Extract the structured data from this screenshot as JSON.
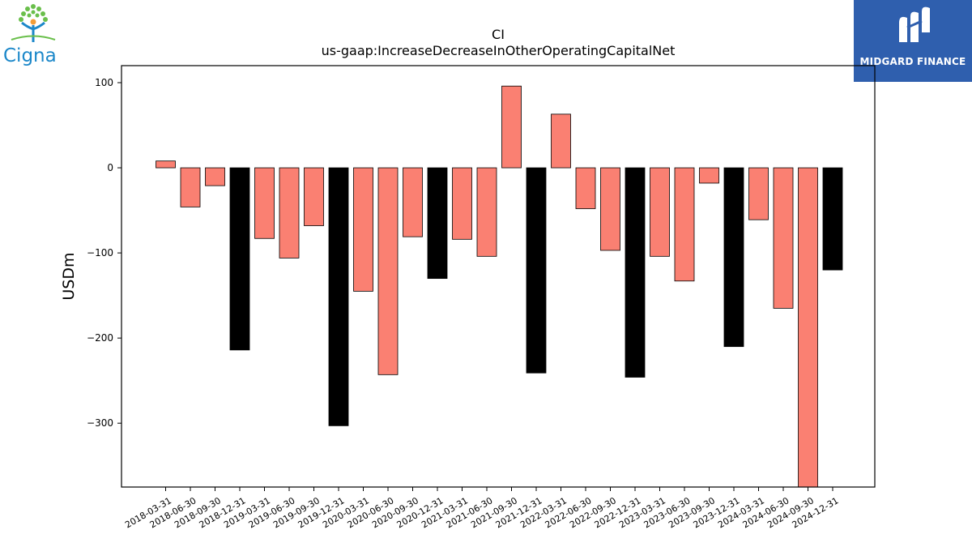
{
  "logos": {
    "left_name": "Cigna",
    "right_name": "MIDGARD FINANCE",
    "colors": {
      "cigna_blue": "#1b87c9",
      "cigna_green": "#6abf4b",
      "cigna_orange": "#f29d38",
      "midgard_blue": "#2f5fae"
    }
  },
  "chart_data": {
    "type": "bar",
    "title": "CI",
    "subtitle": "us-gaap:IncreaseDecreaseInOtherOperatingCapitalNet",
    "xlabel": "",
    "ylabel": "USDm",
    "ylim": [
      -375,
      120
    ],
    "yticks": [
      100,
      0,
      -100,
      -200,
      -300
    ],
    "ytick_labels": [
      "100",
      "0",
      "−100",
      "−200",
      "−300"
    ],
    "grid": false,
    "legend": "none",
    "colors": {
      "quarter": "#fa8072",
      "year_end": "#000000"
    },
    "categories": [
      "2018-03-31",
      "2018-06-30",
      "2018-09-30",
      "2018-12-31",
      "2019-03-31",
      "2019-06-30",
      "2019-09-30",
      "2019-12-31",
      "2020-03-31",
      "2020-06-30",
      "2020-09-30",
      "2020-12-31",
      "2021-03-31",
      "2021-06-30",
      "2021-09-30",
      "2021-12-31",
      "2022-03-31",
      "2022-06-30",
      "2022-09-30",
      "2022-12-31",
      "2023-03-31",
      "2023-06-30",
      "2023-09-30",
      "2023-12-31",
      "2024-03-31",
      "2024-06-30",
      "2024-09-30",
      "2024-12-31"
    ],
    "values": [
      8,
      -46,
      -21,
      -214,
      -83,
      -106,
      -68,
      -303,
      -145,
      -243,
      -81,
      -130,
      -84,
      -104,
      96,
      -241,
      63,
      -48,
      -97,
      -246,
      -104,
      -133,
      -18,
      -210,
      -61,
      -165,
      -375,
      -120
    ]
  }
}
